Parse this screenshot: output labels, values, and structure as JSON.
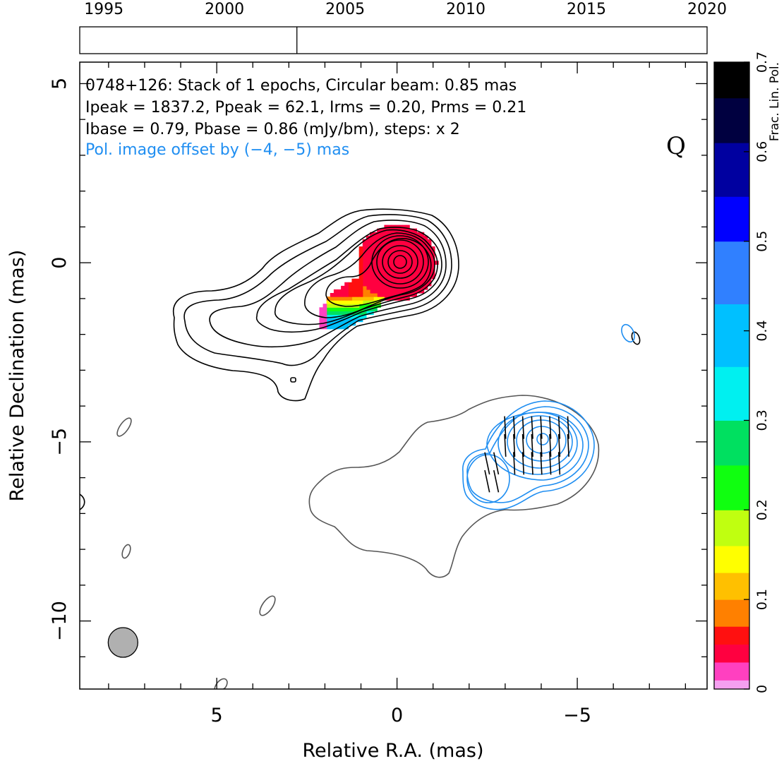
{
  "chart_data": {
    "type": "heatmap",
    "source_name": "0748+126",
    "band_label": "Q",
    "header_lines": [
      "0748+126: Stack of 1 epochs, Circular beam: 0.85 mas",
      "Ipeak = 1837.2, Ppeak = 62.1, Irms = 0.20, Prms = 0.21",
      "Ibase = 0.79, Pbase = 0.86 (mJy/bm), steps: x 2"
    ],
    "offset_note": "Pol. image offset by (−4, −5) mas",
    "offset_note_color": "#1f8ef1",
    "xlabel": "Relative R.A. (mas)",
    "ylabel": "Relative Declination (mas)",
    "xlim": [
      8.8,
      -8.6
    ],
    "ylim": [
      -11.9,
      5.6
    ],
    "xticks": [
      {
        "value": 5,
        "label": "5"
      },
      {
        "value": 0,
        "label": "0"
      },
      {
        "value": -5,
        "label": "−5"
      }
    ],
    "yticks": [
      {
        "value": 5,
        "label": "5"
      },
      {
        "value": 0,
        "label": "0"
      },
      {
        "value": -5,
        "label": "−5"
      },
      {
        "value": -10,
        "label": "−10"
      }
    ],
    "epoch_axis": {
      "range": [
        1994,
        2020
      ],
      "ticks": [
        {
          "value": 1995,
          "label": "1995"
        },
        {
          "value": 2000,
          "label": "2000"
        },
        {
          "value": 2005,
          "label": "2005"
        },
        {
          "value": 2010,
          "label": "2010"
        },
        {
          "value": 2015,
          "label": "2015"
        },
        {
          "value": 2020,
          "label": "2020"
        }
      ],
      "epochs": [
        2003.0
      ]
    },
    "colorbar": {
      "label": "Frac. Lin. Pol.",
      "range": [
        0,
        0.7
      ],
      "ticks": [
        {
          "value": 0,
          "label": "0"
        },
        {
          "value": 0.1,
          "label": "0.1"
        },
        {
          "value": 0.2,
          "label": "0.2"
        },
        {
          "value": 0.3,
          "label": "0.3"
        },
        {
          "value": 0.4,
          "label": "0.4"
        },
        {
          "value": 0.5,
          "label": "0.5"
        },
        {
          "value": 0.6,
          "label": "0.6"
        },
        {
          "value": 0.7,
          "label": "0.7"
        }
      ],
      "stops": [
        [
          0.0,
          "#ffffff"
        ],
        [
          0.01,
          "#f5a0f0"
        ],
        [
          0.03,
          "#ff40c0"
        ],
        [
          0.05,
          "#ff0040"
        ],
        [
          0.07,
          "#ff1010"
        ],
        [
          0.1,
          "#ff8000"
        ],
        [
          0.13,
          "#ffc000"
        ],
        [
          0.16,
          "#ffff00"
        ],
        [
          0.2,
          "#c0ff10"
        ],
        [
          0.25,
          "#10ff10"
        ],
        [
          0.3,
          "#00e060"
        ],
        [
          0.36,
          "#00f0f0"
        ],
        [
          0.43,
          "#00c0ff"
        ],
        [
          0.5,
          "#3080ff"
        ],
        [
          0.55,
          "#0000ff"
        ],
        [
          0.61,
          "#0000a0"
        ],
        [
          0.66,
          "#000040"
        ],
        [
          0.7,
          "#000000"
        ]
      ]
    },
    "beam": {
      "x": 7.6,
      "y": -10.6,
      "diameter_mas": 0.85,
      "fill": "#b0b0b0"
    },
    "stokes_i_contours": {
      "color": "#000000",
      "peak_position": [
        0,
        0
      ],
      "levels_mjy_per_beam": [
        0.79,
        1.58,
        3.16,
        6.32,
        12.64,
        25.28,
        50.56,
        101.1,
        202.2,
        404.5,
        809.0,
        1618.0
      ]
    },
    "pol_intensity_contours": {
      "color": "#1f8ef1",
      "outer_contour_color": "#555555",
      "peak_position": [
        -3.9,
        -5.0
      ],
      "levels_mjy_per_beam": [
        0.86,
        1.72,
        3.44,
        6.88,
        13.76,
        27.52,
        55.04
      ]
    },
    "frac_pol_regions": [
      {
        "x": 0.0,
        "y": 0.0,
        "value": 0.04
      },
      {
        "x": -0.4,
        "y": 0.2,
        "value": 0.045
      },
      {
        "x": 0.6,
        "y": -0.2,
        "value": 0.05
      },
      {
        "x": 1.0,
        "y": -0.8,
        "value": 0.07
      },
      {
        "x": 1.6,
        "y": -0.95,
        "value": 0.1
      },
      {
        "x": 2.0,
        "y": -1.0,
        "value": 0.02
      },
      {
        "x": 1.1,
        "y": -1.45,
        "value": 0.2
      },
      {
        "x": 1.35,
        "y": -1.65,
        "value": 0.3
      }
    ]
  }
}
